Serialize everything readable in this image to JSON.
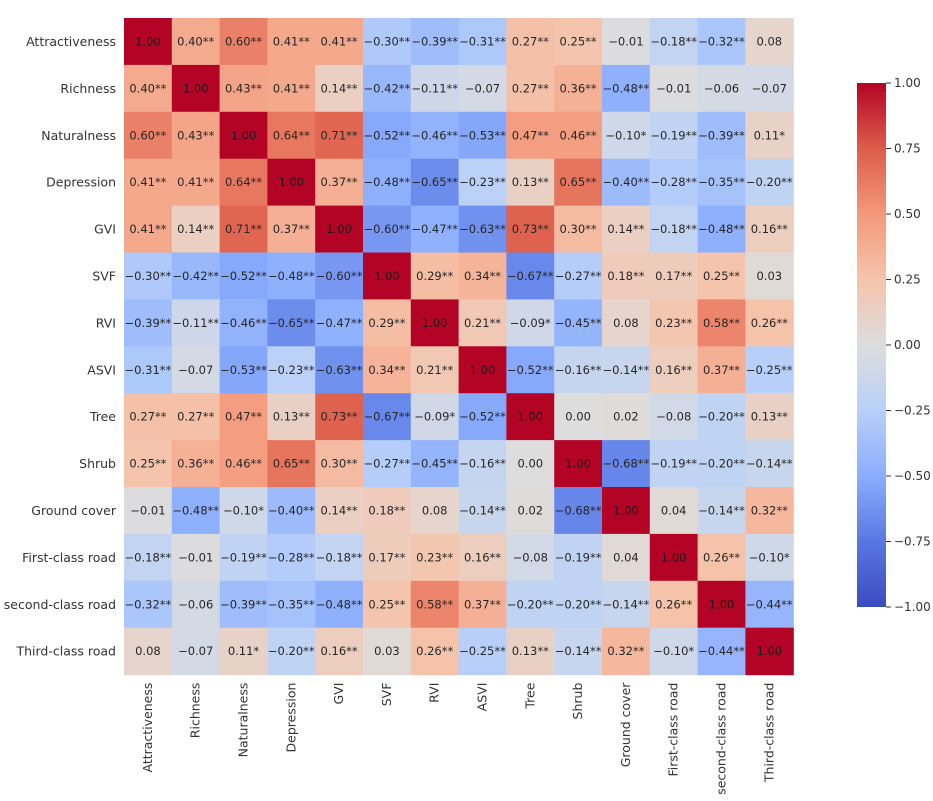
{
  "chart_data": {
    "type": "heatmap",
    "title": "",
    "variables": [
      "Attractiveness",
      "Richness",
      "Naturalness",
      "Depression",
      "GVI",
      "SVF",
      "RVI",
      "ASVI",
      "Tree",
      "Shrub",
      "Ground cover",
      "First-class road",
      "second-class road",
      "Third-class road"
    ],
    "cell_labels": [
      [
        "1.00",
        "0.40**",
        "0.60**",
        "0.41**",
        "0.41**",
        "−0.30**",
        "−0.39**",
        "−0.31**",
        "0.27**",
        "0.25**",
        "−0.01",
        "−0.18**",
        "−0.32**",
        "0.08"
      ],
      [
        "0.40**",
        "1.00",
        "0.43**",
        "0.41**",
        "0.14**",
        "−0.42**",
        "−0.11**",
        "−0.07",
        "0.27**",
        "0.36**",
        "−0.48**",
        "−0.01",
        "−0.06",
        "−0.07"
      ],
      [
        "0.60**",
        "0.43**",
        "1.00",
        "0.64**",
        "0.71**",
        "−0.52**",
        "−0.46**",
        "−0.53**",
        "0.47**",
        "0.46**",
        "−0.10*",
        "−0.19**",
        "−0.39**",
        "0.11*"
      ],
      [
        "0.41**",
        "0.41**",
        "0.64**",
        "1.00",
        "0.37**",
        "−0.48**",
        "−0.65**",
        "−0.23**",
        "0.13**",
        "0.65**",
        "−0.40**",
        "−0.28**",
        "−0.35**",
        "−0.20**"
      ],
      [
        "0.41**",
        "0.14**",
        "0.71**",
        "0.37**",
        "1.00",
        "−0.60**",
        "−0.47**",
        "−0.63**",
        "0.73**",
        "0.30**",
        "0.14**",
        "−0.18**",
        "−0.48**",
        "0.16**"
      ],
      [
        "−0.30**",
        "−0.42**",
        "−0.52**",
        "−0.48**",
        "−0.60**",
        "1.00",
        "0.29**",
        "0.34**",
        "−0.67**",
        "−0.27**",
        "0.18**",
        "0.17**",
        "0.25**",
        "0.03"
      ],
      [
        "−0.39**",
        "−0.11**",
        "−0.46**",
        "−0.65**",
        "−0.47**",
        "0.29**",
        "1.00",
        "0.21**",
        "−0.09*",
        "−0.45**",
        "0.08",
        "0.23**",
        "0.58**",
        "0.26**"
      ],
      [
        "−0.31**",
        "−0.07",
        "−0.53**",
        "−0.23**",
        "−0.63**",
        "0.34**",
        "0.21**",
        "1.00",
        "−0.52**",
        "−0.16**",
        "−0.14**",
        "0.16**",
        "0.37**",
        "−0.25**"
      ],
      [
        "0.27**",
        "0.27**",
        "0.47**",
        "0.13**",
        "0.73**",
        "−0.67**",
        "−0.09*",
        "−0.52**",
        "1.00",
        "0.00",
        "0.02",
        "−0.08",
        "−0.20**",
        "0.13**"
      ],
      [
        "0.25**",
        "0.36**",
        "0.46**",
        "0.65**",
        "0.30**",
        "−0.27**",
        "−0.45**",
        "−0.16**",
        "0.00",
        "1.00",
        "−0.68**",
        "−0.19**",
        "−0.20**",
        "−0.14**"
      ],
      [
        "−0.01",
        "−0.48**",
        "−0.10*",
        "−0.40**",
        "0.14**",
        "0.18**",
        "0.08",
        "−0.14**",
        "0.02",
        "−0.68**",
        "1.00",
        "0.04",
        "−0.14**",
        "0.32**"
      ],
      [
        "−0.18**",
        "−0.01",
        "−0.19**",
        "−0.28**",
        "−0.18**",
        "0.17**",
        "0.23**",
        "0.16**",
        "−0.08",
        "−0.19**",
        "0.04",
        "1.00",
        "0.26**",
        "−0.10*"
      ],
      [
        "−0.32**",
        "−0.06",
        "−0.39**",
        "−0.35**",
        "−0.48**",
        "0.25**",
        "0.58**",
        "0.37**",
        "−0.20**",
        "−0.20**",
        "−0.14**",
        "0.26**",
        "1.00",
        "−0.44**"
      ],
      [
        "0.08",
        "−0.07",
        "0.11*",
        "−0.20**",
        "0.16**",
        "0.03",
        "0.26**",
        "−0.25**",
        "0.13**",
        "−0.14**",
        "0.32**",
        "−0.10*",
        "−0.44**",
        "1.00"
      ]
    ],
    "colorbar": {
      "range": [
        -1,
        1
      ],
      "ticks": [
        "1.00",
        "0.75",
        "0.50",
        "0.25",
        "0.00",
        "−0.25",
        "−0.50",
        "−0.75",
        "−1.00"
      ],
      "tick_values": [
        1,
        0.75,
        0.5,
        0.25,
        0,
        -0.25,
        -0.5,
        -0.75,
        -1
      ],
      "colormap": "coolwarm",
      "colors": {
        "low": "#3b4cc0",
        "mid": "#dddddd",
        "high": "#b40426"
      }
    }
  }
}
